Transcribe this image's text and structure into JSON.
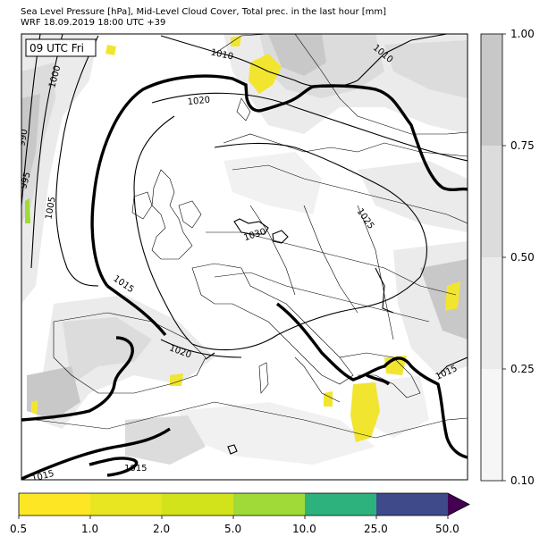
{
  "title": {
    "line1": "Sea Level Pressure [hPa], Mid-Level Cloud Cover, Total prec. in the last hour [mm]",
    "line2": "WRF 18.09.2019 18:00 UTC +39"
  },
  "valid_time_label": "09 UTC Fri",
  "pressure_contours": {
    "labels": [
      "990",
      "995",
      "1000",
      "1005",
      "1010",
      "1010",
      "1015",
      "1015",
      "1015",
      "1015",
      "1020",
      "1020",
      "1025",
      "1030"
    ],
    "reference_level": "1015"
  },
  "cloud_colorbar": {
    "ticks": [
      "1.00",
      "0.75",
      "0.50",
      "0.25",
      "0.10"
    ],
    "colors": [
      "#c8c8c8",
      "#dcdcdc",
      "#ebebeb",
      "#f6f6f6"
    ]
  },
  "precip_colorbar": {
    "ticks": [
      "0.5",
      "1.0",
      "2.0",
      "5.0",
      "10.0",
      "25.0",
      "50.0"
    ],
    "colors": [
      "#fde725",
      "#e8e620",
      "#d2e21b",
      "#a0da39",
      "#2db27d",
      "#3e4a89",
      "#440154"
    ],
    "extend": "max"
  },
  "colors": {
    "land_border": "#000000",
    "precip_light": "#f2e530",
    "cloud_gray": "#c8c8c8"
  }
}
